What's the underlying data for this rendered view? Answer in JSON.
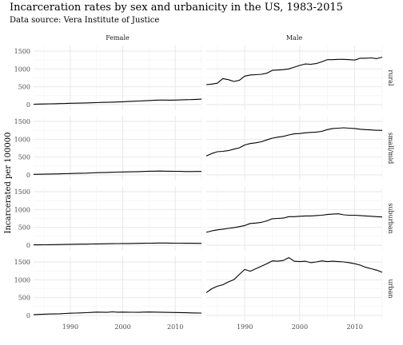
{
  "chart_data": {
    "type": "line",
    "title": "Incarceration rates by sex and urbanicity in the US, 1983-2015",
    "subtitle": "Data source: Vera Institute of Justice",
    "ylabel": "Incarcerated per 100000",
    "xlabel": "",
    "xlim": [
      1983,
      2015
    ],
    "ylim": [
      0,
      1500
    ],
    "x_ticks": [
      1990,
      2000,
      2010
    ],
    "y_ticks": [
      0,
      500,
      1000,
      1500
    ],
    "grid": true,
    "line_color": "#000000",
    "columns": [
      "Female",
      "Male"
    ],
    "rows": [
      "rural",
      "small/mid",
      "suburban",
      "urban"
    ],
    "x": [
      1983,
      1984,
      1985,
      1986,
      1987,
      1988,
      1989,
      1990,
      1991,
      1992,
      1993,
      1994,
      1995,
      1996,
      1997,
      1998,
      1999,
      2000,
      2001,
      2002,
      2003,
      2004,
      2005,
      2006,
      2007,
      2008,
      2009,
      2010,
      2011,
      2012,
      2013,
      2014,
      2015
    ],
    "panels": [
      {
        "row": "rural",
        "col": "Female",
        "values": [
          12,
          15,
          18,
          22,
          25,
          28,
          32,
          38,
          40,
          42,
          46,
          52,
          57,
          62,
          66,
          70,
          75,
          80,
          88,
          95,
          100,
          108,
          115,
          122,
          128,
          128,
          125,
          128,
          133,
          138,
          142,
          148,
          155
        ]
      },
      {
        "row": "small/mid",
        "col": "Female",
        "values": [
          15,
          18,
          21,
          24,
          27,
          30,
          34,
          38,
          42,
          46,
          50,
          56,
          62,
          66,
          70,
          74,
          78,
          82,
          85,
          88,
          92,
          96,
          102,
          106,
          108,
          106,
          104,
          100,
          98,
          95,
          95,
          96,
          97
        ]
      },
      {
        "row": "suburban",
        "col": "Female",
        "values": [
          8,
          10,
          12,
          14,
          16,
          18,
          20,
          24,
          26,
          28,
          30,
          33,
          36,
          38,
          40,
          42,
          44,
          46,
          48,
          50,
          52,
          54,
          56,
          58,
          60,
          60,
          58,
          56,
          55,
          54,
          53,
          52,
          52
        ]
      },
      {
        "row": "urban",
        "col": "Female",
        "values": [
          20,
          28,
          35,
          40,
          42,
          48,
          55,
          62,
          68,
          72,
          78,
          85,
          95,
          92,
          88,
          100,
          92,
          95,
          92,
          90,
          88,
          95,
          97,
          95,
          92,
          88,
          85,
          82,
          80,
          76,
          72,
          70,
          68
        ]
      },
      {
        "row": "rural",
        "col": "Male",
        "values": [
          560,
          575,
          600,
          730,
          700,
          650,
          680,
          800,
          830,
          840,
          850,
          880,
          960,
          970,
          980,
          1000,
          1050,
          1100,
          1140,
          1130,
          1150,
          1200,
          1260,
          1260,
          1270,
          1270,
          1260,
          1250,
          1300,
          1300,
          1310,
          1290,
          1330
        ]
      },
      {
        "row": "small/mid",
        "col": "Male",
        "values": [
          530,
          600,
          650,
          660,
          680,
          720,
          760,
          840,
          880,
          900,
          930,
          980,
          1030,
          1060,
          1080,
          1120,
          1150,
          1160,
          1180,
          1190,
          1200,
          1220,
          1270,
          1300,
          1310,
          1320,
          1310,
          1300,
          1280,
          1270,
          1260,
          1250,
          1250
        ]
      },
      {
        "row": "suburban",
        "col": "Male",
        "values": [
          360,
          400,
          430,
          450,
          470,
          490,
          520,
          550,
          610,
          620,
          640,
          680,
          740,
          750,
          760,
          800,
          800,
          810,
          820,
          820,
          830,
          840,
          860,
          870,
          880,
          850,
          840,
          840,
          830,
          820,
          810,
          800,
          790
        ]
      },
      {
        "row": "urban",
        "col": "Male",
        "values": [
          640,
          750,
          820,
          860,
          940,
          1000,
          1150,
          1290,
          1240,
          1310,
          1380,
          1450,
          1530,
          1520,
          1540,
          1620,
          1520,
          1510,
          1520,
          1480,
          1500,
          1530,
          1510,
          1520,
          1510,
          1500,
          1480,
          1450,
          1410,
          1350,
          1310,
          1270,
          1210
        ]
      }
    ]
  }
}
